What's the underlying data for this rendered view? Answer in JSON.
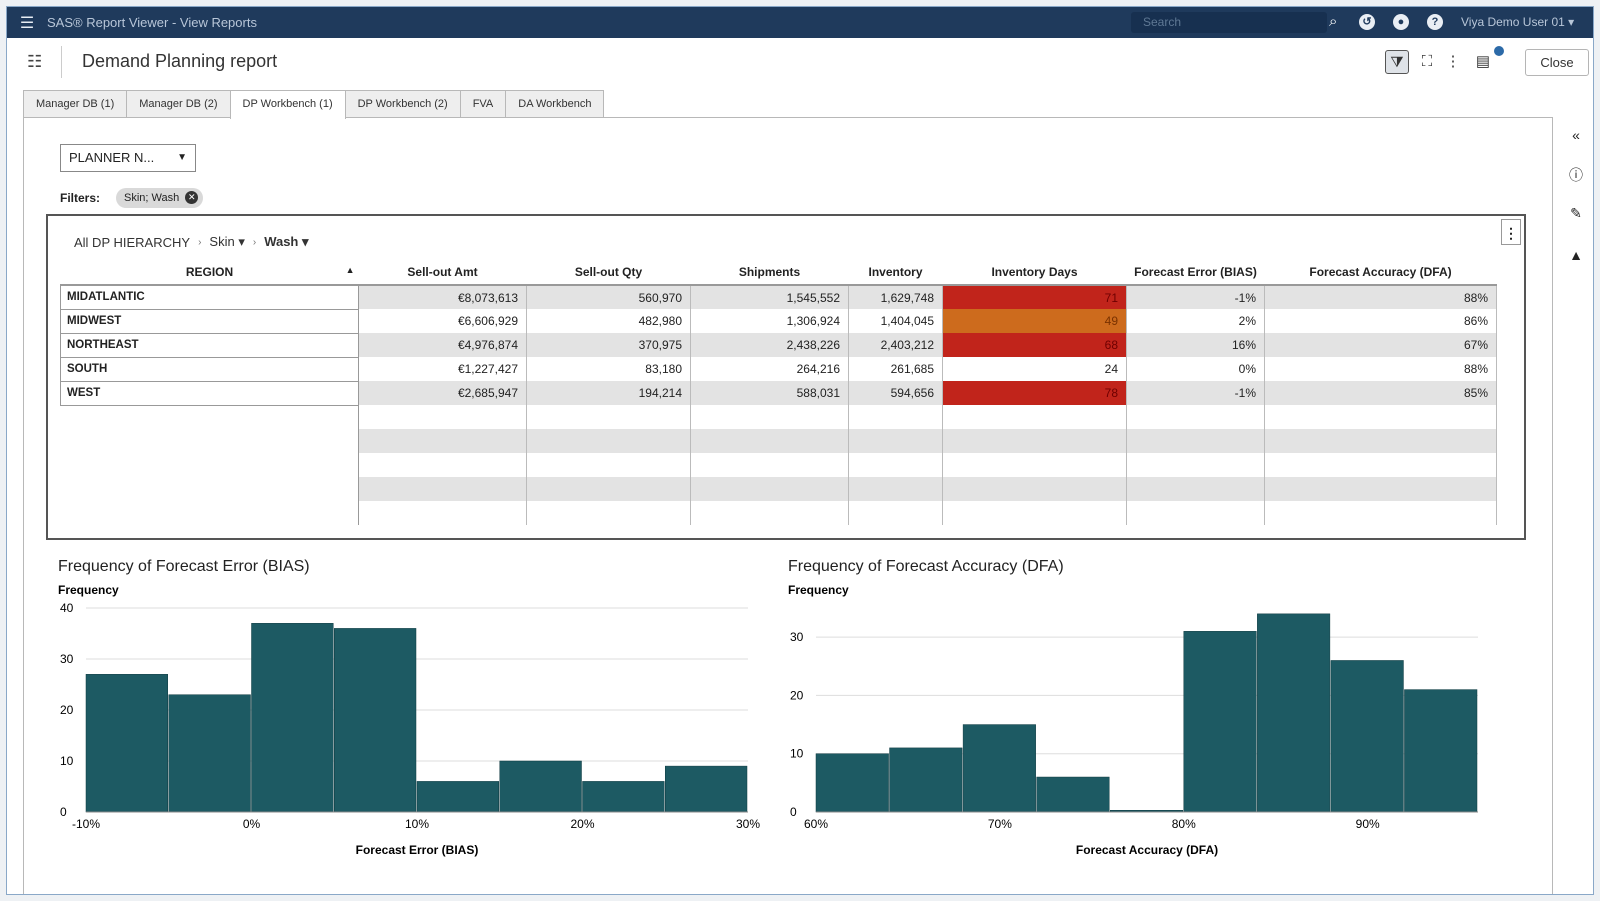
{
  "topbar": {
    "app_title": "SAS® Report Viewer - View Reports",
    "search_placeholder": "Search",
    "user_name": "Viya Demo User 01",
    "icons": [
      "menu-icon",
      "search-icon",
      "clock-icon",
      "bell-icon",
      "help-icon",
      "chevron-down-icon"
    ]
  },
  "report": {
    "title": "Demand Planning report",
    "close_label": "Close"
  },
  "tabs": [
    {
      "label": "Manager DB (1)",
      "active": false
    },
    {
      "label": "Manager DB (2)",
      "active": false
    },
    {
      "label": "DP Workbench (1)",
      "active": true
    },
    {
      "label": "DP Workbench (2)",
      "active": false
    },
    {
      "label": "FVA",
      "active": false
    },
    {
      "label": "DA Workbench",
      "active": false
    }
  ],
  "planner": {
    "label": "PLANNER N..."
  },
  "filters": {
    "label": "Filters:",
    "pill": "Skin; Wash"
  },
  "breadcrumb": {
    "root": "All DP HIERARCHY",
    "level1": "Skin",
    "level2": "Wash"
  },
  "table": {
    "columns": [
      "REGION",
      "Sell-out Amt",
      "Sell-out Qty",
      "Shipments",
      "Inventory",
      "Inventory Days",
      "Forecast Error (BIAS)",
      "Forecast Accuracy (DFA)"
    ],
    "rows": [
      {
        "region": "MIDATLANTIC",
        "amt": "€8,073,613",
        "qty": "560,970",
        "ship": "1,545,552",
        "inv": "1,629,748",
        "days": "71",
        "days_level": "hot",
        "bias": "-1%",
        "dfa": "88%"
      },
      {
        "region": "MIDWEST",
        "amt": "€6,606,929",
        "qty": "482,980",
        "ship": "1,306,924",
        "inv": "1,404,045",
        "days": "49",
        "days_level": "warm",
        "bias": "2%",
        "dfa": "86%"
      },
      {
        "region": "NORTHEAST",
        "amt": "€4,976,874",
        "qty": "370,975",
        "ship": "2,438,226",
        "inv": "2,403,212",
        "days": "68",
        "days_level": "hot",
        "bias": "16%",
        "dfa": "67%"
      },
      {
        "region": "SOUTH",
        "amt": "€1,227,427",
        "qty": "83,180",
        "ship": "264,216",
        "inv": "261,685",
        "days": "24",
        "days_level": "none",
        "bias": "0%",
        "dfa": "88%"
      },
      {
        "region": "WEST",
        "amt": "€2,685,947",
        "qty": "194,214",
        "ship": "588,031",
        "inv": "594,656",
        "days": "78",
        "days_level": "hot",
        "bias": "-1%",
        "dfa": "85%"
      }
    ]
  },
  "colors": {
    "bar": "#1d5a63",
    "hot": "#c1241b",
    "warm": "#cd6b1d",
    "topbar": "#1f3a5c"
  },
  "chart_data": [
    {
      "type": "bar",
      "title": "Frequency of Forecast Error (BIAS)",
      "xlabel": "Forecast Error (BIAS)",
      "ylabel": "Frequency",
      "bin_edges": [
        -10,
        -5,
        0,
        5,
        10,
        15,
        20,
        25,
        30
      ],
      "values": [
        27,
        23,
        37,
        36,
        6,
        10,
        6,
        9
      ],
      "ylim": [
        0,
        40
      ],
      "yticks": [
        0,
        10,
        20,
        30,
        40
      ],
      "xticks": [
        "-10%",
        "0%",
        "10%",
        "20%",
        "30%"
      ],
      "xtick_values": [
        -10,
        0,
        10,
        20,
        30
      ],
      "grid": true
    },
    {
      "type": "bar",
      "title": "Frequency of Forecast Accuracy (DFA)",
      "xlabel": "Forecast Accuracy (DFA)",
      "ylabel": "Frequency",
      "bin_edges": [
        60,
        64,
        68,
        72,
        76,
        80,
        84,
        88,
        92,
        96
      ],
      "values": [
        10,
        11,
        15,
        6,
        0.3,
        31,
        34,
        26,
        21
      ],
      "ylim": [
        0,
        35
      ],
      "yticks": [
        0,
        10,
        20,
        30
      ],
      "xticks": [
        "60%",
        "70%",
        "80%",
        "90%"
      ],
      "xtick_values": [
        60,
        70,
        80,
        90
      ],
      "grid": true
    }
  ]
}
